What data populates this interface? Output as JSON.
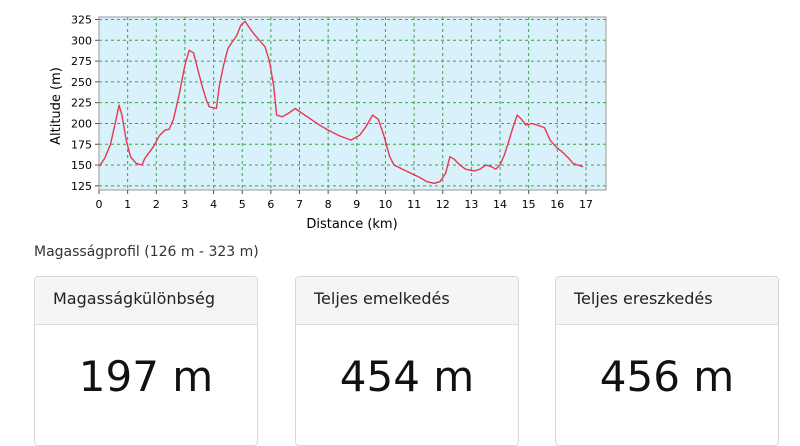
{
  "chart_data": {
    "type": "line",
    "xlabel": "Distance (km)",
    "ylabel": "Altitude (m)",
    "xlim": [
      0,
      17.7
    ],
    "ylim": [
      120,
      328
    ],
    "xticks": [
      0,
      1,
      2,
      3,
      4,
      5,
      6,
      7,
      8,
      9,
      10,
      11,
      12,
      13,
      14,
      15,
      16,
      17
    ],
    "yticks": [
      125,
      150,
      175,
      200,
      225,
      250,
      275,
      300,
      325
    ],
    "grid": true,
    "colors": {
      "line": "#e8384f",
      "plot_bg": "#d9f1fb",
      "grid": "#3aa83a"
    },
    "series": [
      {
        "x": [
          0,
          0.2,
          0.4,
          0.55,
          0.7,
          0.8,
          0.95,
          1.1,
          1.3,
          1.5,
          1.6,
          1.75,
          1.9,
          2.1,
          2.3,
          2.45,
          2.6,
          2.8,
          3.0,
          3.15,
          3.3,
          3.45,
          3.6,
          3.75,
          3.85,
          4.1,
          4.2,
          4.35,
          4.5,
          4.65,
          4.8,
          4.95,
          5.1,
          5.25,
          5.4,
          5.6,
          5.8,
          5.95,
          6.1,
          6.2,
          6.4,
          6.6,
          6.85,
          7.1,
          7.4,
          7.7,
          8.0,
          8.4,
          8.8,
          9.1,
          9.3,
          9.55,
          9.75,
          9.95,
          10.15,
          10.3,
          10.6,
          10.9,
          11.2,
          11.45,
          11.7,
          11.9,
          12.1,
          12.25,
          12.4,
          12.6,
          12.8,
          13.1,
          13.3,
          13.5,
          13.7,
          13.85,
          14.0,
          14.15,
          14.3,
          14.45,
          14.6,
          14.75,
          14.9,
          15.1,
          15.3,
          15.55,
          15.75,
          15.95,
          16.2,
          16.4,
          16.55,
          16.7,
          16.9
        ],
        "values": [
          148,
          158,
          175,
          198,
          222,
          210,
          180,
          160,
          152,
          150,
          158,
          165,
          172,
          185,
          192,
          193,
          205,
          235,
          270,
          288,
          285,
          265,
          245,
          228,
          220,
          218,
          245,
          270,
          290,
          298,
          305,
          318,
          323,
          315,
          308,
          300,
          292,
          275,
          245,
          210,
          208,
          212,
          218,
          212,
          205,
          198,
          192,
          185,
          180,
          186,
          195,
          210,
          205,
          185,
          160,
          150,
          145,
          140,
          135,
          130,
          128,
          130,
          140,
          160,
          157,
          150,
          145,
          143,
          145,
          150,
          148,
          145,
          150,
          162,
          178,
          195,
          210,
          205,
          198,
          200,
          198,
          195,
          180,
          172,
          165,
          158,
          152,
          150,
          148
        ]
      }
    ]
  },
  "profile_caption": "Magasságprofil (126 m - 323 m)",
  "stats": [
    {
      "label": "Magasságkülönbség",
      "value": "197 m"
    },
    {
      "label": "Teljes emelkedés",
      "value": "454 m"
    },
    {
      "label": "Teljes ereszkedés",
      "value": "456 m"
    }
  ]
}
